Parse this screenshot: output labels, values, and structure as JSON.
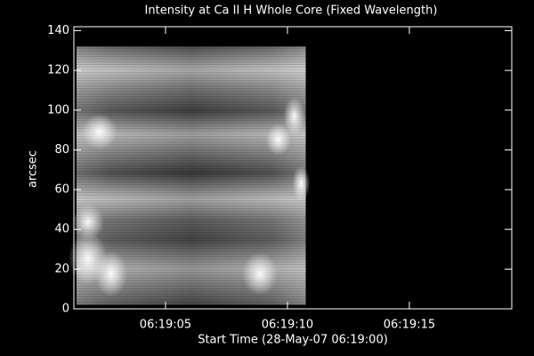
{
  "chart_data": {
    "type": "image",
    "title": "Intensity at Ca II H Whole Core (Fixed Wavelength)",
    "xlabel": "Start Time (28-May-07 06:19:00)",
    "ylabel": "arcsec",
    "xlim": [
      1.24,
      19.2
    ],
    "ylim": [
      0,
      142
    ],
    "xticks": [
      {
        "value": 5,
        "label": "06:19:05"
      },
      {
        "value": 10,
        "label": "06:19:10"
      },
      {
        "value": 15,
        "label": "06:19:15"
      }
    ],
    "yticks": [
      0,
      20,
      40,
      60,
      80,
      100,
      120,
      140
    ],
    "image_extent": {
      "x": [
        1.35,
        10.75
      ],
      "y": [
        2,
        132
      ]
    },
    "colormap": "gray"
  }
}
